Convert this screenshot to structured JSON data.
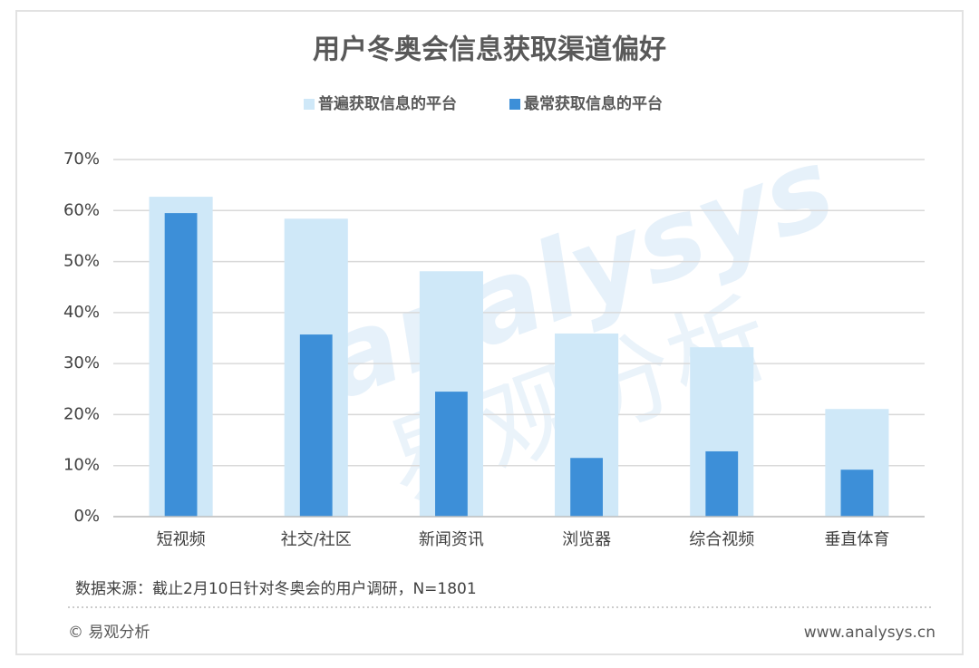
{
  "chart_data": {
    "type": "bar",
    "title": "用户冬奥会信息获取渠道偏好",
    "categories": [
      "短视频",
      "社交/社区",
      "新闻资讯",
      "浏览器",
      "综合视频",
      "垂直体育"
    ],
    "series": [
      {
        "name": "普遍获取信息的平台",
        "color": "#cfe8f8",
        "values": [
          62.7,
          58.4,
          48.1,
          35.9,
          33.2,
          21.1
        ]
      },
      {
        "name": "最常获取信息的平台",
        "color": "#3d8fd8",
        "values": [
          59.5,
          35.7,
          24.5,
          11.5,
          12.8,
          9.2
        ]
      }
    ],
    "ylim": [
      0,
      70
    ],
    "yticks": [
      {
        "value": 0,
        "label": "0%"
      },
      {
        "value": 10,
        "label": "10%"
      },
      {
        "value": 20,
        "label": "20%"
      },
      {
        "value": 30,
        "label": "30%"
      },
      {
        "value": 40,
        "label": "40%"
      },
      {
        "value": 50,
        "label": "50%"
      },
      {
        "value": 60,
        "label": "60%"
      },
      {
        "value": 70,
        "label": "70%"
      }
    ],
    "grid": true,
    "legend": "top",
    "note": "数据来源：截止2月10日针对冬奥会的用户调研，N=1801"
  },
  "watermark": {
    "brand": "analysys",
    "name": "易观分析"
  },
  "footer": {
    "copyright": "© 易观分析",
    "website": "www.analysys.cn"
  }
}
